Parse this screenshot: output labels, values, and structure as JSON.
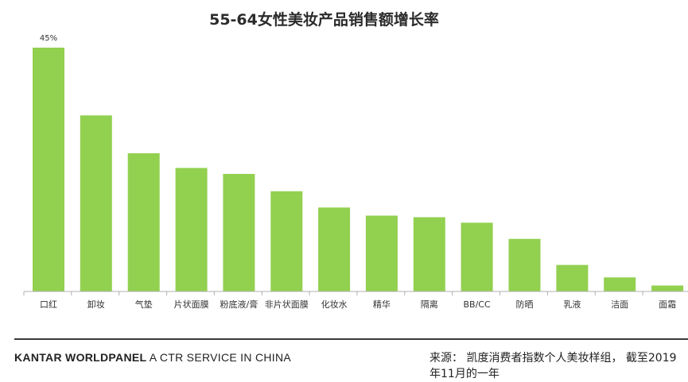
{
  "chart_data": {
    "type": "bar",
    "title": "55-64女性美妆产品销售额增长率",
    "categories": [
      "口红",
      "卸妆",
      "气垫",
      "片状面膜",
      "粉底液/膏",
      "非片状面膜",
      "化妆水",
      "精华",
      "隔离",
      "BB/CC",
      "防晒",
      "乳液",
      "洁面",
      "面霜"
    ],
    "values": [
      45,
      32.5,
      25.5,
      22.8,
      21.7,
      18.5,
      15.5,
      14,
      13.7,
      12.7,
      9.7,
      4.9,
      2.6,
      1.1
    ],
    "data_labels": [
      "45%",
      "",
      "",
      "",
      "",
      "",
      "",
      "",
      "",
      "",
      "",
      "",
      "",
      ""
    ],
    "ylim": [
      0,
      45
    ],
    "xlabel": "",
    "ylabel": "",
    "grid": false,
    "bar_color": "#92d050"
  },
  "footer": {
    "brand_strong": "KANTAR WORLDPANEL",
    "brand_rest": "A CTR SERVICE IN CHINA",
    "source": "来源： 凯度消费者指数个人美妆样组， 截至2019年11月的一年"
  }
}
